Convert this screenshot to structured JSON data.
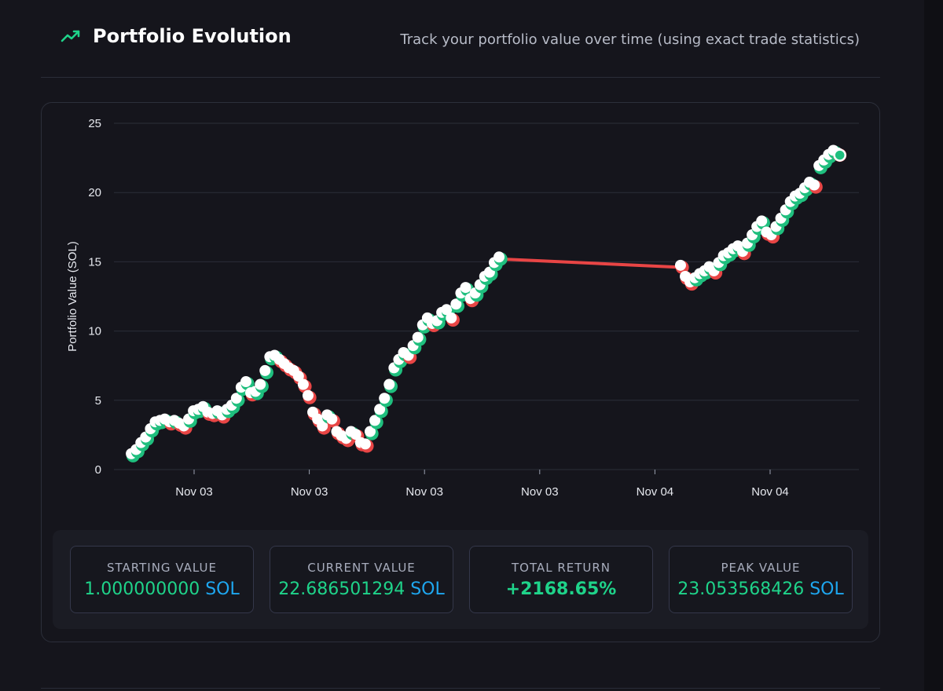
{
  "header": {
    "title": "Portfolio Evolution",
    "subtitle": "Track your portfolio value over time (using exact trade statistics)",
    "icon": "trending-up-icon"
  },
  "colors": {
    "accent_green": "#1fd38a",
    "unit_blue": "#1ea7f0",
    "loss_red": "#e84545",
    "point_white": "#ffffff"
  },
  "chart_data": {
    "type": "scatter",
    "ylabel": "Portfolio Value (SOL)",
    "xlabel": "",
    "ylim": [
      0,
      25
    ],
    "yticks": [
      "0",
      "5",
      "10",
      "15",
      "20",
      "25"
    ],
    "xtick_labels": [
      "Nov 03",
      "Nov 03",
      "Nov 03",
      "Nov 03",
      "Nov 04",
      "Nov 04"
    ],
    "grid": true,
    "series": [
      {
        "values": [
          [
            0,
            1.0
          ],
          [
            1,
            1.3
          ],
          [
            2,
            1.8
          ],
          [
            3,
            2.2
          ],
          [
            4,
            2.8
          ],
          [
            5,
            3.3
          ],
          [
            6,
            3.4
          ],
          [
            7,
            3.5
          ],
          [
            8,
            3.3
          ],
          [
            9,
            3.4
          ],
          [
            10,
            3.2
          ],
          [
            11,
            3.0
          ],
          [
            12,
            3.5
          ],
          [
            13,
            4.1
          ],
          [
            14,
            4.2
          ],
          [
            15,
            4.4
          ],
          [
            16,
            4.0
          ],
          [
            17,
            3.9
          ],
          [
            18,
            4.1
          ],
          [
            19,
            3.8
          ],
          [
            20,
            4.2
          ],
          [
            21,
            4.5
          ],
          [
            22,
            5.0
          ],
          [
            23,
            5.8
          ],
          [
            24,
            6.2
          ],
          [
            25,
            5.4
          ],
          [
            26,
            5.5
          ],
          [
            27,
            6.0
          ],
          [
            28,
            7.0
          ],
          [
            29,
            8.0
          ],
          [
            30,
            8.1
          ],
          [
            31,
            7.8
          ],
          [
            32,
            7.5
          ],
          [
            33,
            7.2
          ],
          [
            34,
            7.0
          ],
          [
            35,
            6.6
          ],
          [
            36,
            6.0
          ],
          [
            37,
            5.2
          ],
          [
            38,
            4.0
          ],
          [
            39,
            3.5
          ],
          [
            40,
            3.0
          ],
          [
            41,
            3.8
          ],
          [
            42,
            3.5
          ],
          [
            43,
            2.6
          ],
          [
            44,
            2.3
          ],
          [
            45,
            2.1
          ],
          [
            46,
            2.6
          ],
          [
            47,
            2.4
          ],
          [
            48,
            1.8
          ],
          [
            49,
            1.7
          ],
          [
            50,
            2.6
          ],
          [
            51,
            3.4
          ],
          [
            52,
            4.2
          ],
          [
            53,
            5.0
          ],
          [
            54,
            6.0
          ],
          [
            55,
            7.2
          ],
          [
            56,
            7.8
          ],
          [
            57,
            8.3
          ],
          [
            58,
            8.1
          ],
          [
            59,
            8.8
          ],
          [
            60,
            9.4
          ],
          [
            61,
            10.3
          ],
          [
            62,
            10.8
          ],
          [
            63,
            10.4
          ],
          [
            64,
            10.6
          ],
          [
            65,
            11.2
          ],
          [
            66,
            11.4
          ],
          [
            67,
            10.8
          ],
          [
            68,
            11.8
          ],
          [
            69,
            12.6
          ],
          [
            70,
            13.0
          ],
          [
            71,
            12.2
          ],
          [
            72,
            12.6
          ],
          [
            73,
            13.2
          ],
          [
            74,
            13.8
          ],
          [
            75,
            14.1
          ],
          [
            76,
            14.8
          ],
          [
            77,
            15.2
          ],
          [
            115,
            14.6
          ],
          [
            116,
            13.8
          ],
          [
            117,
            13.4
          ],
          [
            118,
            13.7
          ],
          [
            119,
            14.0
          ],
          [
            120,
            14.2
          ],
          [
            121,
            14.5
          ],
          [
            122,
            14.2
          ],
          [
            123,
            14.8
          ],
          [
            124,
            15.3
          ],
          [
            125,
            15.5
          ],
          [
            126,
            15.8
          ],
          [
            127,
            16.0
          ],
          [
            128,
            15.6
          ],
          [
            129,
            16.2
          ],
          [
            130,
            16.8
          ],
          [
            131,
            17.4
          ],
          [
            132,
            17.8
          ],
          [
            133,
            17.0
          ],
          [
            134,
            16.8
          ],
          [
            135,
            17.4
          ],
          [
            136,
            18.0
          ],
          [
            137,
            18.6
          ],
          [
            138,
            19.2
          ],
          [
            139,
            19.6
          ],
          [
            140,
            19.8
          ],
          [
            141,
            20.2
          ],
          [
            142,
            20.6
          ],
          [
            143,
            20.4
          ],
          [
            144,
            21.8
          ],
          [
            145,
            22.2
          ],
          [
            146,
            22.6
          ],
          [
            147,
            22.9
          ],
          [
            148,
            22.7
          ]
        ]
      }
    ]
  },
  "stats": [
    {
      "label": "STARTING VALUE",
      "number": "1.000000000",
      "unit": " SOL"
    },
    {
      "label": "CURRENT VALUE",
      "number": "22.686501294",
      "unit": " SOL"
    },
    {
      "label": "TOTAL RETURN",
      "number": "+2168.65%",
      "unit": ""
    },
    {
      "label": "PEAK VALUE",
      "number": "23.053568426",
      "unit": " SOL"
    }
  ]
}
